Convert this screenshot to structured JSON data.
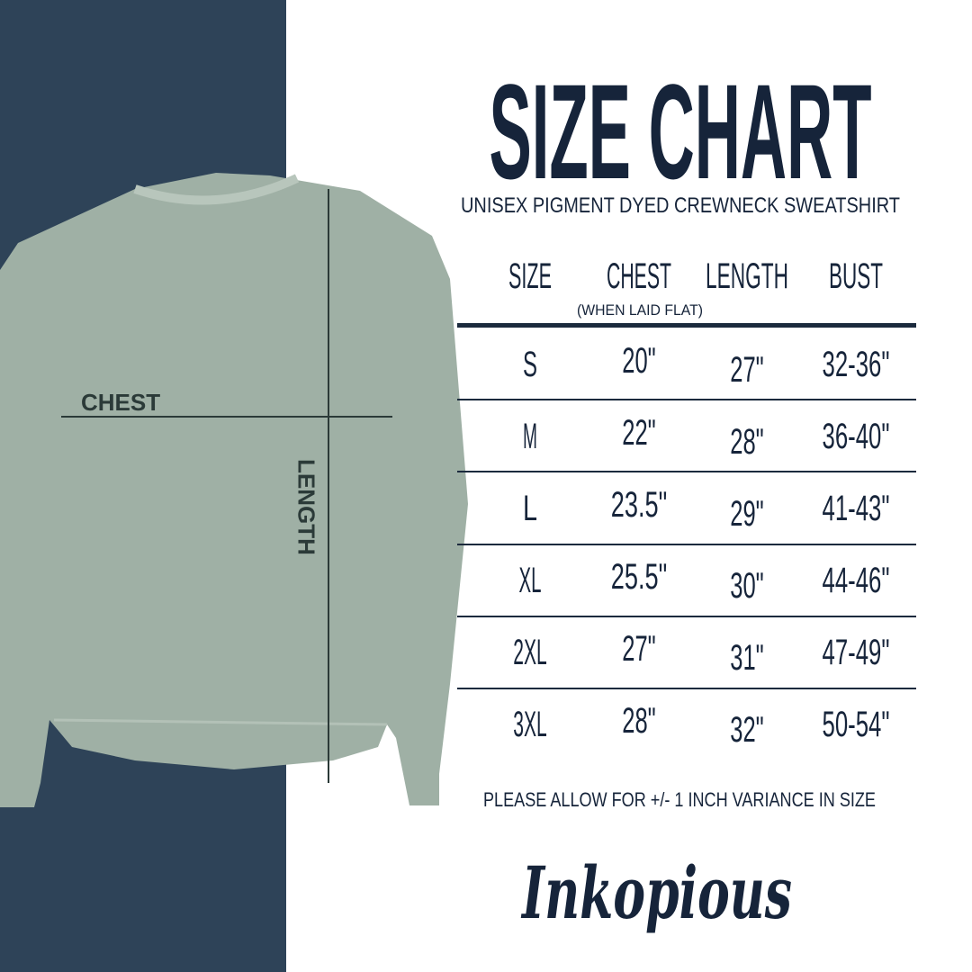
{
  "title": "SIZE CHART",
  "subtitle": "UNISEX PIGMENT DYED CREWNECK SWEATSHIRT",
  "headers": [
    "SIZE",
    "CHEST",
    "LENGTH",
    "BUST"
  ],
  "chest_note": "(WHEN LAID FLAT)",
  "rows": [
    [
      "S",
      "20\"",
      "27\"",
      "32-36\""
    ],
    [
      "M",
      "22\"",
      "28\"",
      "36-40\""
    ],
    [
      "L",
      "23.5\"",
      "29\"",
      "41-43\""
    ],
    [
      "XL",
      "25.5\"",
      "30\"",
      "44-46\""
    ],
    [
      "2XL",
      "27\"",
      "31\"",
      "47-49\""
    ],
    [
      "3XL",
      "28\"",
      "32\"",
      "50-54\""
    ]
  ],
  "note": "PLEASE ALLOW FOR +/- 1 INCH VARIANCE IN SIZE",
  "logo": "Inkopious",
  "diagram": {
    "chest_label": "CHEST",
    "length_label": "LENGTH"
  },
  "colors": {
    "panel": "#2e4358",
    "text": "#16243a",
    "garment": "#9fb0a5"
  }
}
